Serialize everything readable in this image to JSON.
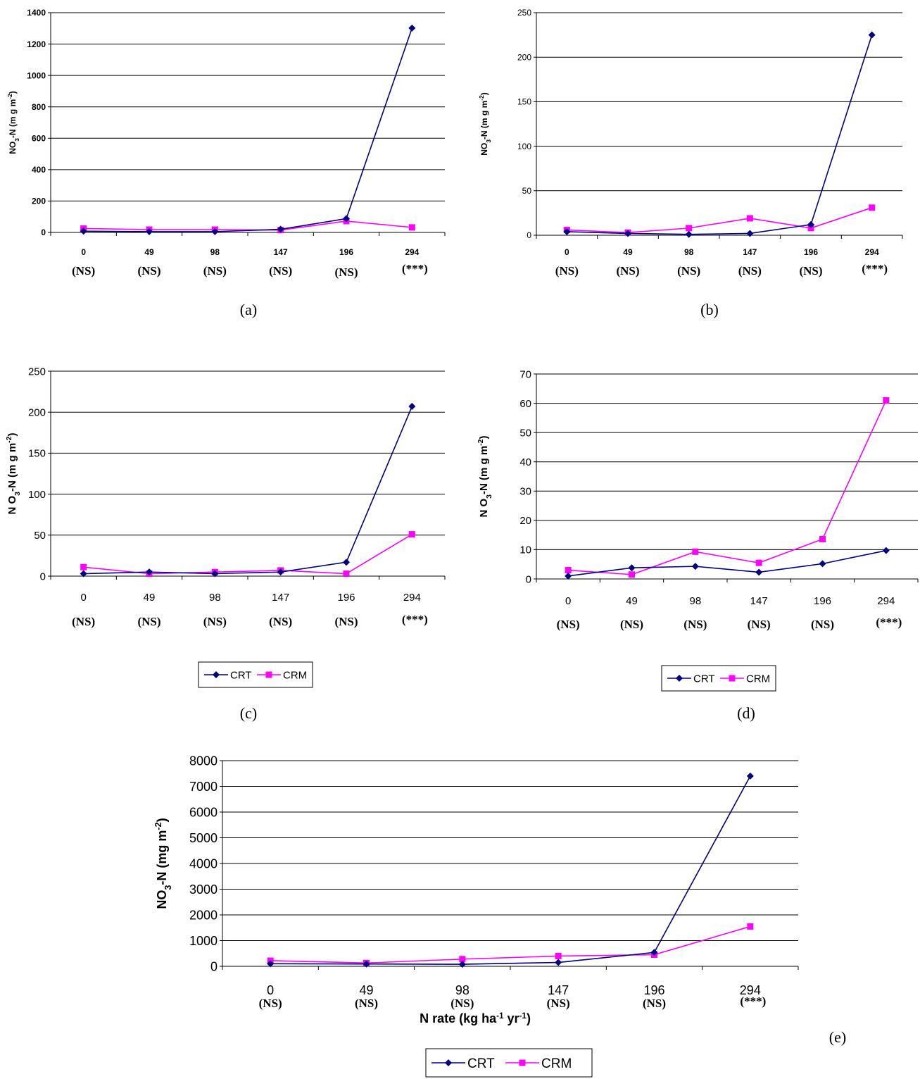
{
  "chart_data": [
    {
      "type": "line",
      "panel_label": "(a)",
      "ylabel": "NO3-N (mg m-2)",
      "ylabel_parts": {
        "main": "NO",
        "sub": "3",
        "mid": "-N (m g m",
        "sup": "-2",
        "end": ")"
      },
      "ylim": [
        0,
        1400
      ],
      "yticks": [
        "0",
        "200",
        "400",
        "600",
        "800",
        "1000",
        "1200",
        "1400"
      ],
      "categories": [
        "0",
        "49",
        "98",
        "147",
        "196",
        "294"
      ],
      "significance": [
        "(NS)",
        "(NS)",
        "(NS)",
        "(NS)",
        "(NS)",
        "(***)"
      ],
      "series": [
        {
          "name": "CRT",
          "values": [
            8,
            5,
            5,
            20,
            88,
            1302
          ]
        },
        {
          "name": "CRM",
          "values": [
            25,
            18,
            18,
            15,
            72,
            32
          ]
        }
      ],
      "grid": true
    },
    {
      "type": "line",
      "panel_label": "(b)",
      "ylabel": "NO3-N (mg m-2)",
      "ylabel_parts": {
        "main": "NO",
        "sub": "3",
        "mid": "-N (m g m",
        "sup": "-2",
        "end": ")"
      },
      "ylim": [
        0,
        250
      ],
      "yticks": [
        "0",
        "50",
        "100",
        "150",
        "200",
        "250"
      ],
      "categories": [
        "0",
        "49",
        "98",
        "147",
        "196",
        "294"
      ],
      "significance": [
        "(NS)",
        "(NS)",
        "(NS)",
        "(NS)",
        "(NS)",
        "(***)"
      ],
      "series": [
        {
          "name": "CRT",
          "values": [
            4,
            2,
            1,
            2,
            12,
            225
          ]
        },
        {
          "name": "CRM",
          "values": [
            6,
            3,
            8,
            19,
            8,
            31
          ]
        }
      ],
      "grid": true
    },
    {
      "type": "line",
      "panel_label": "(c)",
      "ylabel": "NO3-N (mg m-2)",
      "ylabel_parts": {
        "main": "N O",
        "sub": "3",
        "mid": "-N (m g m",
        "sup": "-2",
        "end": ")"
      },
      "ylim": [
        0,
        250
      ],
      "yticks": [
        "0",
        "50",
        "100",
        "150",
        "200",
        "250"
      ],
      "categories": [
        "0",
        "49",
        "98",
        "147",
        "196",
        "294"
      ],
      "significance": [
        "(NS)",
        "(NS)",
        "(NS)",
        "(NS)",
        "(NS)",
        "(***)"
      ],
      "series": [
        {
          "name": "CRT",
          "values": [
            3,
            5,
            3,
            5,
            17,
            207
          ]
        },
        {
          "name": "CRM",
          "values": [
            11,
            3,
            5,
            7,
            3,
            51
          ]
        }
      ],
      "legend": [
        "CRT",
        "CRM"
      ],
      "grid": true
    },
    {
      "type": "line",
      "panel_label": "(d)",
      "ylabel": "NO3-N (mg m-2)",
      "ylabel_parts": {
        "main": "N O",
        "sub": "3",
        "mid": "-N (m g m",
        "sup": "-2",
        "end": ")"
      },
      "ylim": [
        0,
        70
      ],
      "yticks": [
        "0",
        "10",
        "20",
        "30",
        "40",
        "50",
        "60",
        "70"
      ],
      "categories": [
        "0",
        "49",
        "98",
        "147",
        "196",
        "294"
      ],
      "significance": [
        "(NS)",
        "(NS)",
        "(NS)",
        "(NS)",
        "(NS)",
        "(***)"
      ],
      "series": [
        {
          "name": "CRT",
          "values": [
            1,
            3.8,
            4.3,
            2.3,
            5.2,
            9.7
          ]
        },
        {
          "name": "CRM",
          "values": [
            3,
            1.5,
            9.3,
            5.5,
            13.6,
            61
          ]
        }
      ],
      "legend": [
        "CRT",
        "CRM"
      ],
      "grid": true
    },
    {
      "type": "line",
      "panel_label": "(e)",
      "ylabel": "NO3-N (mg m-2)",
      "ylabel_parts": {
        "main": "NO",
        "sub": "3",
        "mid": "-N (mg m",
        "sup": "-2",
        "end": ")"
      },
      "xlabel": "N rate (kg ha-1 yr-1)",
      "xlabel_parts": {
        "a": "N rate (kg ha",
        "sup1": "-1",
        "b": " yr",
        "sup2": "-1",
        "c": ")"
      },
      "ylim": [
        0,
        8000
      ],
      "yticks": [
        "0",
        "1000",
        "2000",
        "3000",
        "4000",
        "5000",
        "6000",
        "7000",
        "8000"
      ],
      "categories": [
        "0",
        "49",
        "98",
        "147",
        "196",
        "294"
      ],
      "significance": [
        "(NS)",
        "(NS)",
        "(NS)",
        "(NS)",
        "(NS)",
        "(***)"
      ],
      "series": [
        {
          "name": "CRT",
          "values": [
            100,
            90,
            80,
            150,
            540,
            7400
          ]
        },
        {
          "name": "CRM",
          "values": [
            220,
            130,
            280,
            400,
            450,
            1550
          ]
        }
      ],
      "legend": [
        "CRT",
        "CRM"
      ],
      "grid": true
    }
  ],
  "colors": {
    "CRT": "#000080",
    "CRM": "#ff00ff",
    "grid": "#000000"
  }
}
